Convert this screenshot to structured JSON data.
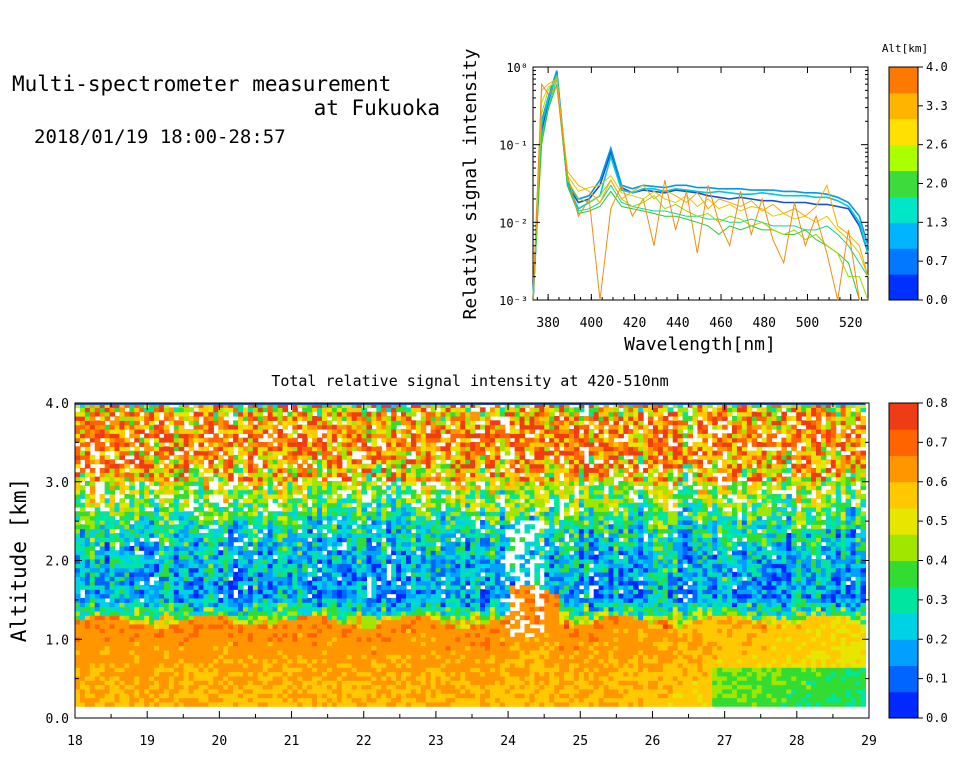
{
  "header": {
    "title_line1": "Multi-spectrometer measurement",
    "title_line2": "at Fukuoka",
    "datetime": "2018/01/19 18:00-28:57"
  },
  "chart_data": [
    {
      "type": "line",
      "title": "",
      "xlabel": "Wavelength[nm]",
      "ylabel": "Relative signal intensity",
      "xlim": [
        373,
        528
      ],
      "ylim": [
        0.001,
        1
      ],
      "yscale": "log",
      "x_ticks": [
        380,
        400,
        420,
        440,
        460,
        480,
        500,
        520
      ],
      "x_tick_labels": [
        "380",
        "400",
        "420",
        "440",
        "460",
        "480",
        "500",
        "520"
      ],
      "y_ticks": [
        0.001,
        0.01,
        0.1,
        1
      ],
      "y_tick_labels": [
        "10⁻³",
        "10⁻²",
        "10⁻¹",
        "10⁰"
      ],
      "x": [
        373,
        377,
        380,
        384,
        389,
        394,
        399,
        404,
        409,
        414,
        419,
        424,
        429,
        434,
        439,
        444,
        449,
        454,
        459,
        464,
        469,
        474,
        479,
        484,
        489,
        494,
        499,
        504,
        509,
        514,
        519,
        524,
        528
      ],
      "colorbar": {
        "label": "Alt[km]",
        "ticks": [
          "0.0",
          "0.7",
          "1.3",
          "2.0",
          "2.6",
          "3.3",
          "4.0"
        ],
        "min": 0.0,
        "max": 4.0,
        "colors": [
          "#0030ff",
          "#0078ff",
          "#00b4ff",
          "#00e6c8",
          "#3cdc3c",
          "#aaff00",
          "#ffe000",
          "#ffb400",
          "#ff7800"
        ]
      },
      "series": [
        {
          "alt": 0.1,
          "color": "#1a50c8",
          "values": [
            0.001,
            0.15,
            0.35,
            0.85,
            0.03,
            0.018,
            0.02,
            0.03,
            0.08,
            0.028,
            0.024,
            0.026,
            0.025,
            0.024,
            0.026,
            0.025,
            0.024,
            0.022,
            0.021,
            0.02,
            0.021,
            0.02,
            0.019,
            0.019,
            0.018,
            0.018,
            0.018,
            0.017,
            0.017,
            0.016,
            0.015,
            0.009,
            0.004
          ]
        },
        {
          "alt": 0.6,
          "color": "#0a96e6",
          "values": [
            0.001,
            0.2,
            0.4,
            0.9,
            0.033,
            0.02,
            0.022,
            0.035,
            0.09,
            0.03,
            0.027,
            0.03,
            0.029,
            0.028,
            0.03,
            0.03,
            0.028,
            0.028,
            0.027,
            0.027,
            0.027,
            0.026,
            0.026,
            0.026,
            0.025,
            0.025,
            0.024,
            0.024,
            0.023,
            0.021,
            0.018,
            0.012,
            0.005
          ]
        },
        {
          "alt": 1.0,
          "color": "#00c8dc",
          "values": [
            0.001,
            0.18,
            0.38,
            0.8,
            0.03,
            0.015,
            0.018,
            0.022,
            0.07,
            0.026,
            0.024,
            0.027,
            0.027,
            0.025,
            0.027,
            0.026,
            0.025,
            0.024,
            0.025,
            0.024,
            0.023,
            0.023,
            0.024,
            0.023,
            0.022,
            0.022,
            0.022,
            0.021,
            0.021,
            0.019,
            0.016,
            0.01,
            0.004
          ]
        },
        {
          "alt": 1.5,
          "color": "#00dc96",
          "values": [
            0.001,
            0.12,
            0.3,
            0.7,
            0.03,
            0.014,
            0.015,
            0.018,
            0.03,
            0.018,
            0.016,
            0.015,
            0.014,
            0.014,
            0.013,
            0.012,
            0.012,
            0.011,
            0.011,
            0.01,
            0.01,
            0.011,
            0.01,
            0.009,
            0.009,
            0.009,
            0.008,
            0.008,
            0.009,
            0.007,
            0.005,
            0.003,
            0.002
          ]
        },
        {
          "alt": 1.9,
          "color": "#28c832",
          "values": [
            0.001,
            0.1,
            0.28,
            0.6,
            0.029,
            0.013,
            0.014,
            0.016,
            0.025,
            0.016,
            0.015,
            0.014,
            0.013,
            0.012,
            0.012,
            0.011,
            0.01,
            0.009,
            0.007,
            0.009,
            0.008,
            0.009,
            0.008,
            0.008,
            0.007,
            0.007,
            0.008,
            0.006,
            0.005,
            0.004,
            0.003,
            0.001,
            0.001
          ]
        },
        {
          "alt": 2.4,
          "color": "#96dc00",
          "values": [
            0.001,
            0.25,
            0.5,
            0.75,
            0.035,
            0.02,
            0.018,
            0.022,
            0.035,
            0.02,
            0.016,
            0.018,
            0.022,
            0.015,
            0.017,
            0.014,
            0.012,
            0.013,
            0.01,
            0.012,
            0.011,
            0.009,
            0.01,
            0.008,
            0.007,
            0.008,
            0.006,
            0.007,
            0.005,
            0.004,
            0.002,
            0.002,
            0.001
          ]
        },
        {
          "alt": 2.9,
          "color": "#e6c800",
          "values": [
            0.001,
            0.35,
            0.55,
            0.65,
            0.04,
            0.025,
            0.028,
            0.03,
            0.04,
            0.024,
            0.022,
            0.02,
            0.025,
            0.02,
            0.018,
            0.022,
            0.016,
            0.02,
            0.015,
            0.017,
            0.014,
            0.016,
            0.015,
            0.012,
            0.013,
            0.011,
            0.012,
            0.01,
            0.012,
            0.008,
            0.006,
            0.004,
            0.002
          ]
        },
        {
          "alt": 3.3,
          "color": "#ffaa00",
          "values": [
            0.001,
            0.5,
            0.6,
            0.7,
            0.045,
            0.03,
            0.025,
            0.018,
            0.035,
            0.02,
            0.025,
            0.03,
            0.02,
            0.026,
            0.022,
            0.018,
            0.024,
            0.015,
            0.02,
            0.018,
            0.016,
            0.019,
            0.014,
            0.017,
            0.013,
            0.015,
            0.012,
            0.016,
            0.03,
            0.009,
            0.007,
            0.005,
            0.002
          ]
        },
        {
          "alt": 3.8,
          "color": "#f08c14",
          "values": [
            0.001,
            0.6,
            0.45,
            0.55,
            0.04,
            0.012,
            0.02,
            0.0008,
            0.015,
            0.03,
            0.012,
            0.02,
            0.005,
            0.035,
            0.008,
            0.025,
            0.004,
            0.03,
            0.01,
            0.005,
            0.025,
            0.007,
            0.02,
            0.006,
            0.003,
            0.018,
            0.005,
            0.012,
            0.004,
            0.0008,
            0.008,
            0.001,
            0.001
          ]
        }
      ]
    },
    {
      "type": "heatmap",
      "title": "Total relative signal intensity at 420-510nm",
      "xlabel": "",
      "ylabel": "Altitude [km]",
      "xlim": [
        18,
        29
      ],
      "ylim": [
        0.0,
        4.0
      ],
      "x_ticks": [
        18,
        19,
        20,
        21,
        22,
        23,
        24,
        25,
        26,
        27,
        28,
        29
      ],
      "x_tick_labels": [
        "18",
        "19",
        "20",
        "21",
        "22",
        "23",
        "24",
        "25",
        "26",
        "27",
        "28",
        "29"
      ],
      "y_ticks": [
        0.0,
        1.0,
        2.0,
        3.0,
        4.0
      ],
      "y_tick_labels": [
        "0.0",
        "1.0",
        "2.0",
        "3.0",
        "4.0"
      ],
      "data_time_range": [
        18.0,
        28.95
      ],
      "data_alt_range": [
        0.15,
        4.0
      ],
      "colorbar": {
        "min": 0.0,
        "max": 0.8,
        "ticks": [
          "0.0",
          "0.1",
          "0.2",
          "0.3",
          "0.4",
          "0.5",
          "0.6",
          "0.7",
          "0.8"
        ],
        "colors": [
          "#0028ff",
          "#0064ff",
          "#00a0ff",
          "#00d2e6",
          "#00e6a0",
          "#32dc32",
          "#a0e600",
          "#e6e600",
          "#ffc800",
          "#ff9600",
          "#ff6400",
          "#f03c14"
        ]
      },
      "profile_description": {
        "altitudes_km": [
          0.2,
          0.5,
          0.8,
          1.1,
          1.3,
          1.5,
          1.8,
          2.1,
          2.4,
          2.7,
          3.0,
          3.3,
          3.6,
          3.9
        ],
        "typical_values": [
          0.55,
          0.62,
          0.66,
          0.64,
          0.35,
          0.15,
          0.18,
          0.22,
          0.28,
          0.38,
          0.48,
          0.55,
          0.6,
          0.45
        ]
      }
    }
  ]
}
